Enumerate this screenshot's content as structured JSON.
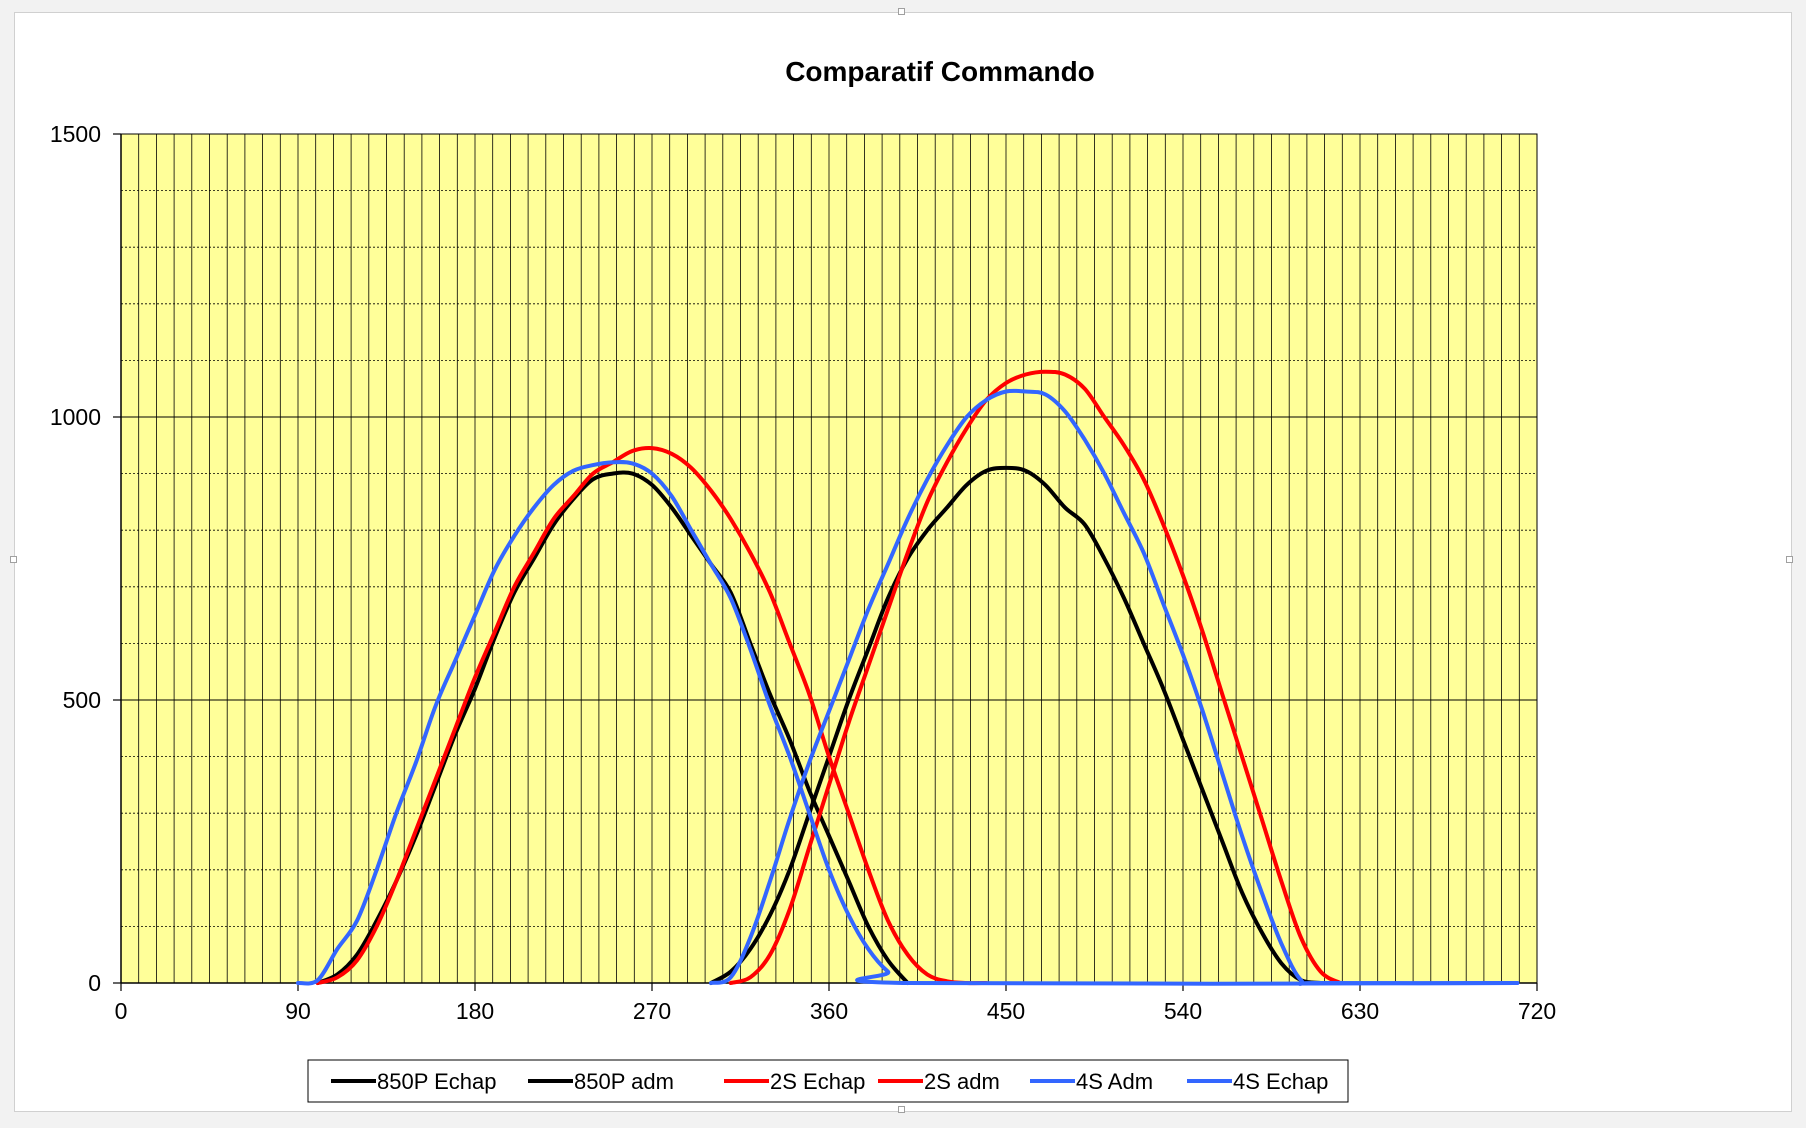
{
  "chart_data": {
    "type": "line",
    "title": "Comparatif Commando",
    "xlabel": "",
    "ylabel": "",
    "xlim": [
      0,
      720
    ],
    "ylim": [
      0,
      1500
    ],
    "xticks": [
      0,
      90,
      180,
      270,
      360,
      450,
      540,
      630,
      720
    ],
    "yticks": [
      0,
      500,
      1000,
      1500
    ],
    "x_minor_step": 9,
    "y_minor_step": 100,
    "plot_background": "#ffff99",
    "grid": true,
    "legend_position": "bottom",
    "series": [
      {
        "name": "850P Echap",
        "color": "#000000",
        "x": [
          100,
          110,
          120,
          130,
          140,
          150,
          160,
          170,
          180,
          190,
          200,
          210,
          220,
          230,
          240,
          250,
          260,
          270,
          280,
          290,
          300,
          310,
          320,
          330,
          340,
          350,
          360,
          370,
          380,
          390,
          400
        ],
        "y": [
          0,
          15,
          50,
          110,
          180,
          260,
          350,
          440,
          520,
          610,
          690,
          750,
          810,
          855,
          890,
          900,
          900,
          880,
          840,
          790,
          740,
          690,
          600,
          510,
          430,
          340,
          260,
          180,
          100,
          40,
          0
        ]
      },
      {
        "name": "850P adm",
        "color": "#000000",
        "x": [
          300,
          310,
          320,
          330,
          340,
          350,
          360,
          370,
          380,
          390,
          400,
          410,
          420,
          430,
          440,
          450,
          460,
          470,
          480,
          490,
          500,
          510,
          520,
          530,
          540,
          550,
          560,
          570,
          580,
          590,
          600,
          610
        ],
        "y": [
          0,
          20,
          60,
          120,
          200,
          300,
          400,
          500,
          590,
          680,
          750,
          800,
          840,
          880,
          905,
          910,
          905,
          880,
          840,
          810,
          750,
          680,
          600,
          520,
          430,
          340,
          250,
          160,
          90,
          35,
          5,
          0
        ]
      },
      {
        "name": "2S Echap",
        "color": "#ff0000",
        "x": [
          100,
          110,
          120,
          130,
          140,
          150,
          160,
          170,
          180,
          190,
          200,
          210,
          220,
          230,
          240,
          250,
          260,
          270,
          280,
          290,
          300,
          310,
          320,
          330,
          340,
          350,
          360,
          370,
          380,
          390,
          400,
          410,
          420,
          430,
          440
        ],
        "y": [
          0,
          10,
          40,
          100,
          180,
          270,
          360,
          450,
          540,
          620,
          700,
          760,
          820,
          860,
          900,
          920,
          940,
          945,
          935,
          910,
          870,
          820,
          760,
          690,
          600,
          510,
          400,
          300,
          200,
          110,
          50,
          15,
          3,
          0,
          0
        ]
      },
      {
        "name": "2S adm",
        "color": "#ff0000",
        "x": [
          310,
          320,
          330,
          340,
          350,
          360,
          370,
          380,
          390,
          400,
          410,
          420,
          430,
          440,
          450,
          460,
          470,
          480,
          490,
          500,
          510,
          520,
          530,
          540,
          550,
          560,
          570,
          580,
          590,
          600,
          610,
          620
        ],
        "y": [
          0,
          10,
          50,
          130,
          240,
          350,
          460,
          560,
          660,
          760,
          850,
          920,
          980,
          1030,
          1060,
          1075,
          1080,
          1075,
          1050,
          1000,
          950,
          890,
          810,
          720,
          620,
          510,
          400,
          290,
          180,
          80,
          20,
          0
        ]
      },
      {
        "name": "4S Adm",
        "color": "#3366ff",
        "x": [
          90,
          100,
          110,
          120,
          130,
          140,
          150,
          160,
          170,
          180,
          190,
          200,
          210,
          220,
          230,
          240,
          250,
          260,
          270,
          280,
          290,
          300,
          310,
          320,
          330,
          340,
          350,
          360,
          370,
          380,
          390,
          400,
          710
        ],
        "y": [
          0,
          5,
          60,
          110,
          200,
          300,
          390,
          490,
          570,
          650,
          730,
          790,
          840,
          880,
          905,
          915,
          920,
          918,
          900,
          860,
          800,
          740,
          680,
          590,
          490,
          400,
          300,
          200,
          120,
          60,
          20,
          0,
          0
        ]
      },
      {
        "name": "4S Echap",
        "color": "#3366ff",
        "x": [
          300,
          310,
          320,
          330,
          340,
          350,
          360,
          370,
          380,
          390,
          400,
          410,
          420,
          430,
          440,
          450,
          460,
          470,
          480,
          490,
          500,
          510,
          520,
          530,
          540,
          550,
          560,
          570,
          580,
          590,
          600,
          610,
          710
        ],
        "y": [
          0,
          10,
          80,
          180,
          290,
          390,
          480,
          570,
          660,
          740,
          820,
          890,
          950,
          1000,
          1030,
          1045,
          1045,
          1040,
          1010,
          960,
          900,
          830,
          760,
          670,
          580,
          480,
          370,
          260,
          160,
          70,
          5,
          0,
          0
        ]
      }
    ]
  }
}
